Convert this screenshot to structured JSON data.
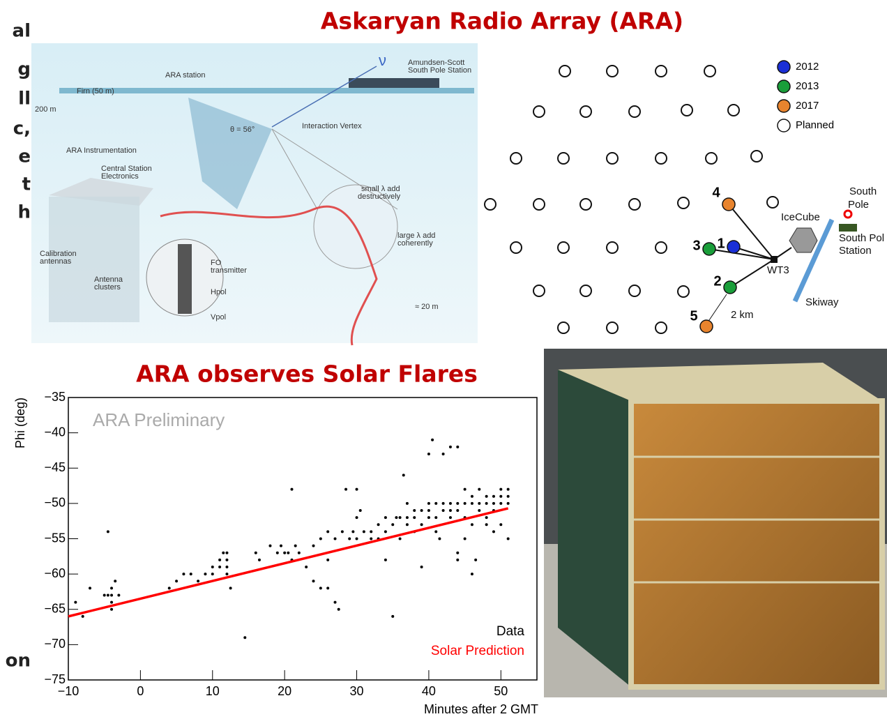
{
  "slide": {
    "title": "Askaryan Radio Array (ARA)",
    "subtitle": "ARA observes Solar Flares",
    "left_fragments": [
      "al",
      "g",
      "ll",
      "c,",
      "e",
      "t",
      "h",
      "on"
    ]
  },
  "illustration": {
    "labels": [
      "ARA station",
      "Amundsen-Scott",
      "South Pole Station",
      "Firn (50 m)",
      "200 m",
      "θ = 56°",
      "Interaction Vertex",
      "ARA Instrumentation",
      "Central Station",
      "Electronics",
      "Calibration",
      "antennas",
      "Antenna",
      "clusters",
      "FO",
      "transmitter",
      "Hpol",
      "Vpol",
      "small λ add",
      "destructively",
      "large λ add",
      "coherently",
      "≈ 20 m",
      "ν"
    ]
  },
  "station_map": {
    "legend": [
      {
        "label": "2012",
        "color": "#1a2fd6"
      },
      {
        "label": "2013",
        "color": "#1a9e3a"
      },
      {
        "label": "2017",
        "color": "#e8842e"
      },
      {
        "label": "Planned",
        "color": "#ffffff"
      }
    ],
    "stations": [
      {
        "label": "1",
        "color": "#1a2fd6"
      },
      {
        "label": "2",
        "color": "#1a9e3a"
      },
      {
        "label": "3",
        "color": "#1a9e3a"
      },
      {
        "label": "4",
        "color": "#e8842e"
      },
      {
        "label": "5",
        "color": "#e8842e"
      }
    ],
    "labels": {
      "wt3": "WT3",
      "icecube": "IceCube",
      "south_pole_1": "South",
      "south_pole_2": "Pole",
      "station_1": "South Pol",
      "station_2": "Station",
      "skiway": "Skiway",
      "scale": "2 km"
    }
  },
  "chart_data": {
    "type": "scatter",
    "annotation": "ARA Preliminary",
    "x_label": "Minutes after 2 GMT",
    "y_label": "Phi (deg)",
    "xlim": [
      -10,
      55
    ],
    "ylim": [
      -75,
      -35
    ],
    "xticks": [
      {
        "value": -10,
        "label": "−10"
      },
      0,
      10,
      20,
      30,
      40,
      50
    ],
    "yticks": [
      {
        "value": -75,
        "label": "−75"
      },
      {
        "value": -70,
        "label": "−70"
      },
      {
        "value": -65,
        "label": "−65"
      },
      {
        "value": -60,
        "label": "−60"
      },
      {
        "value": -55,
        "label": "−55"
      },
      {
        "value": -50,
        "label": "−50"
      },
      {
        "value": -45,
        "label": "−45"
      },
      {
        "value": -40,
        "label": "−40"
      },
      {
        "value": -35,
        "label": "−35"
      }
    ],
    "series": [
      {
        "name": "Data",
        "color": "#000000",
        "mode": "markers",
        "x": [
          -9,
          -8,
          -7,
          -5,
          -4.5,
          -4,
          -4,
          -4,
          -4.5,
          -3.5,
          -3,
          -4,
          4,
          5,
          6,
          7,
          8,
          9,
          10,
          10,
          11,
          11,
          11.5,
          12,
          12,
          12,
          12,
          12.5,
          14.5,
          16,
          16.5,
          18,
          19,
          19.5,
          20,
          20.5,
          21,
          21,
          21.5,
          22,
          24,
          24,
          25,
          25,
          26,
          26,
          27,
          27,
          27.5,
          28,
          28.5,
          29,
          29.5,
          30,
          30,
          30.5,
          31,
          32,
          32,
          33,
          33,
          34,
          34,
          35,
          35,
          35.5,
          36,
          36,
          36.5,
          37,
          37,
          38,
          38,
          38,
          39,
          39,
          39,
          40,
          40,
          40,
          40,
          40.5,
          41,
          41,
          41,
          41.5,
          42,
          42,
          42,
          43,
          43,
          43,
          43,
          44,
          44,
          44,
          44,
          44,
          45,
          45,
          45,
          46,
          46,
          46,
          46.5,
          47,
          47,
          48,
          48,
          48,
          49,
          49,
          49,
          50,
          50,
          50,
          51,
          51,
          51,
          51,
          50,
          49,
          48,
          45,
          47,
          30,
          26,
          23,
          34,
          37,
          46
        ],
        "y": [
          -64,
          -66,
          -62,
          -63,
          -63,
          -63,
          -62,
          -64,
          -54,
          -61,
          -63,
          -65,
          -62,
          -61,
          -60,
          -60,
          -61,
          -60,
          -59,
          -60,
          -58,
          -59,
          -57,
          -59,
          -60,
          -58,
          -57,
          -62,
          -69,
          -57,
          -58,
          -56,
          -57,
          -56,
          -57,
          -57,
          -48,
          -58,
          -56,
          -57,
          -56,
          -61,
          -55,
          -62,
          -62,
          -54,
          -55,
          -64,
          -65,
          -54,
          -48,
          -55,
          -54,
          -48,
          -55,
          -51,
          -54,
          -55,
          -54,
          -53,
          -55,
          -52,
          -54,
          -53,
          -66,
          -52,
          -52,
          -55,
          -46,
          -53,
          -52,
          -51,
          -52,
          -54,
          -51,
          -53,
          -59,
          -50,
          -51,
          -52,
          -43,
          -41,
          -50,
          -52,
          -54,
          -55,
          -50,
          -51,
          -43,
          -50,
          -51,
          -52,
          -42,
          -50,
          -51,
          -42,
          -57,
          -58,
          -50,
          -52,
          -55,
          -49,
          -50,
          -60,
          -58,
          -50,
          -51,
          -49,
          -50,
          -52,
          -49,
          -50,
          -51,
          -48,
          -49,
          -50,
          -48,
          -49,
          -50,
          -55,
          -53,
          -54,
          -53,
          -48,
          -48,
          -52,
          -58,
          -59,
          -58,
          -50,
          -53
        ]
      },
      {
        "name": "Solar Prediction",
        "color": "#ff0000",
        "mode": "line",
        "x": [
          -10,
          51
        ],
        "y": [
          -66,
          -50.7
        ]
      }
    ]
  }
}
